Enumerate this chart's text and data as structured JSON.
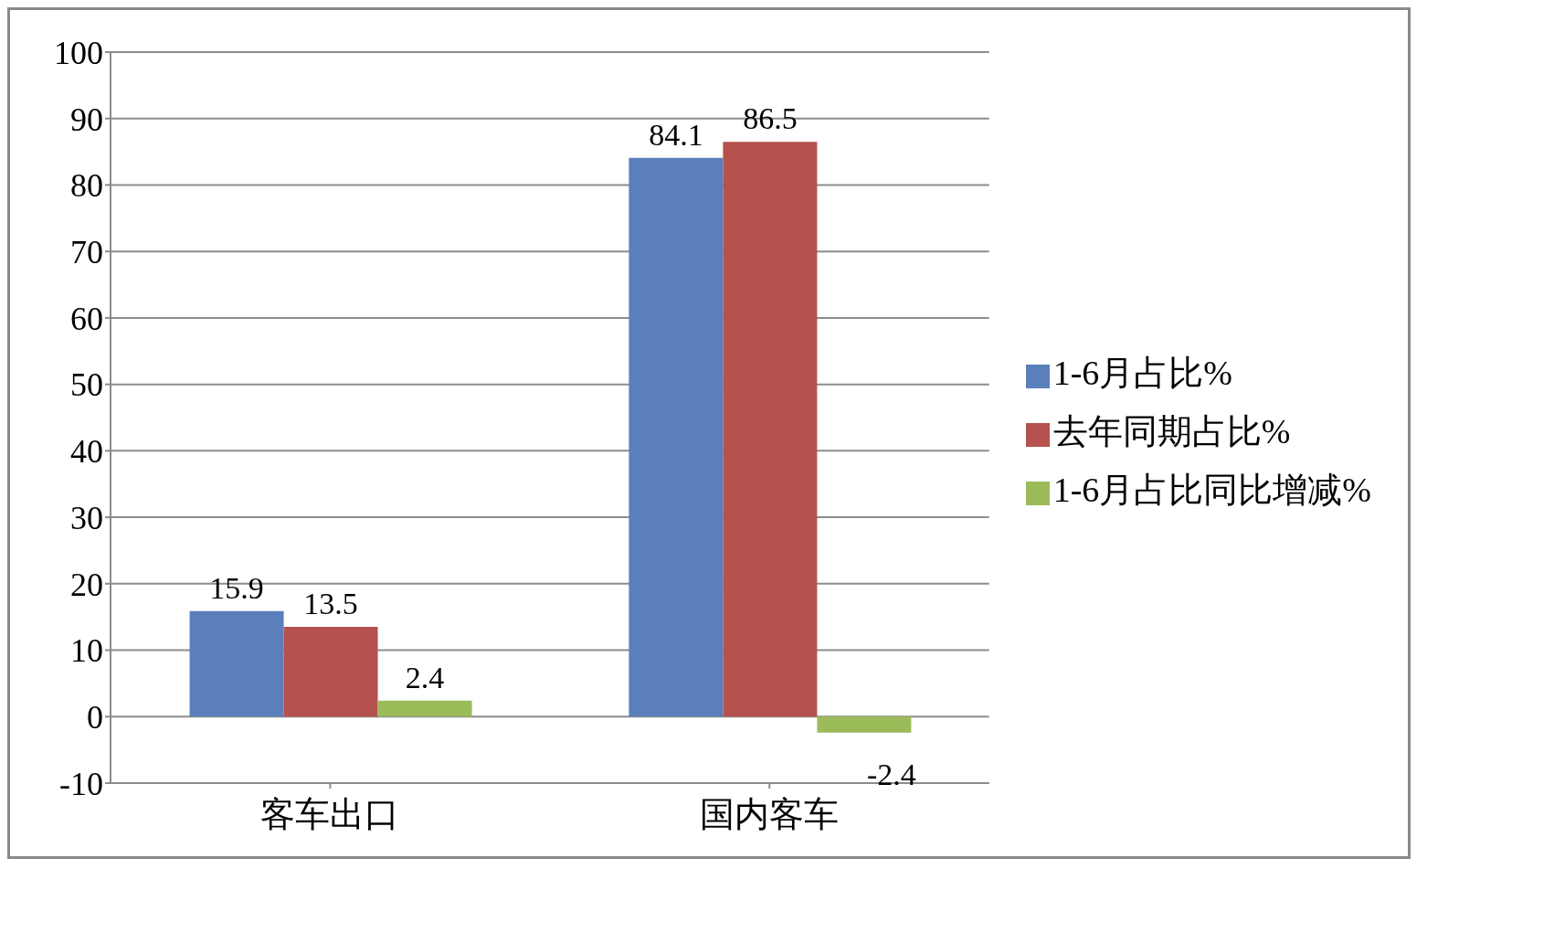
{
  "chart_data": {
    "type": "bar",
    "categories": [
      "客车出口",
      "国内客车"
    ],
    "series": [
      {
        "name": "1-6月占比%",
        "color": "#5b7fbb",
        "values": [
          15.9,
          84.1
        ]
      },
      {
        "name": "去年同期占比%",
        "color": "#b5524e",
        "values": [
          13.5,
          86.5
        ]
      },
      {
        "name": "1-6月占比同比增减%",
        "color": "#9bbb59",
        "values": [
          2.4,
          -2.4
        ]
      }
    ],
    "ylim": [
      -10,
      100
    ],
    "yticks": [
      -10,
      0,
      10,
      20,
      30,
      40,
      50,
      60,
      70,
      80,
      90,
      100
    ],
    "grid": "y",
    "legend": "right",
    "data_labels": true
  }
}
